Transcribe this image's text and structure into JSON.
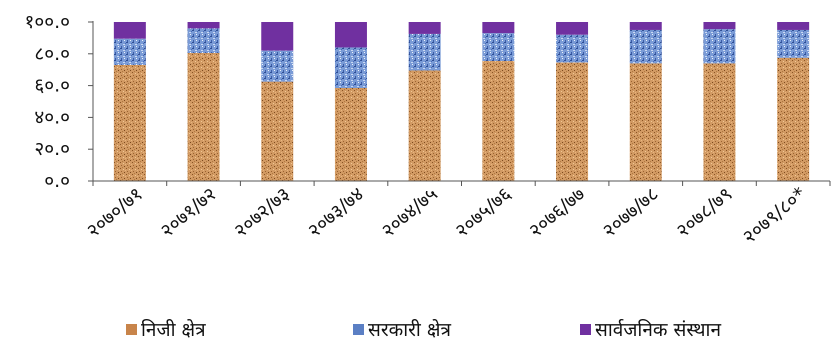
{
  "chart_data": {
    "type": "bar",
    "stacked": true,
    "categories": [
      "२०७०/७१",
      "२०७१/७२",
      "२०७२/७३",
      "२०७३/७४",
      "२०७४/७५",
      "२०७५/७६",
      "२०७६/७७",
      "२०७७/७८",
      "२०७८/७९",
      "२०७९/८०*"
    ],
    "series": [
      {
        "name": "निजी क्षेत्र",
        "color": "#c8844a",
        "values": [
          73.0,
          80.5,
          62.5,
          58.5,
          69.5,
          75.5,
          74.5,
          74.0,
          74.0,
          77.5
        ]
      },
      {
        "name": "सरकारी क्षेत्र",
        "color": "#5b7fc4",
        "values": [
          16.5,
          15.5,
          19.5,
          25.5,
          23.0,
          17.5,
          17.5,
          21.0,
          21.5,
          17.5
        ]
      },
      {
        "name": "सार्वजनिक संस्थान",
        "color": "#7030a0",
        "values": [
          10.5,
          4.0,
          18.0,
          16.0,
          7.5,
          7.0,
          8.0,
          5.0,
          4.5,
          5.0
        ]
      }
    ],
    "ylim": [
      0,
      100
    ],
    "yticks": [
      "०.०",
      "२०.०",
      "४०.०",
      "६०.०",
      "८०.०",
      "१००.०"
    ],
    "legend_position": "bottom",
    "grid": false
  }
}
